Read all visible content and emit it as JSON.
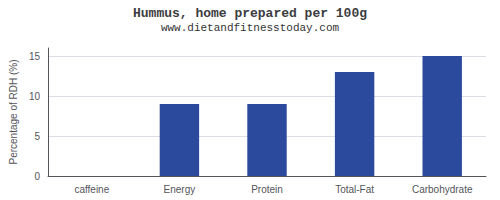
{
  "chart_data": {
    "type": "bar",
    "title": "Hummus, home prepared per 100g",
    "subtitle": "www.dietandfitnesstoday.com",
    "categories": [
      "caffeine",
      "Energy",
      "Protein",
      "Total-Fat",
      "Carbohydrate"
    ],
    "values": [
      0,
      9,
      9,
      13,
      15
    ],
    "color": "#2b4a9e",
    "ylabel": "Percentage of RDH (%)",
    "ylim": [
      0,
      16
    ],
    "yticks": [
      0,
      5,
      10,
      15
    ],
    "grid": true
  }
}
